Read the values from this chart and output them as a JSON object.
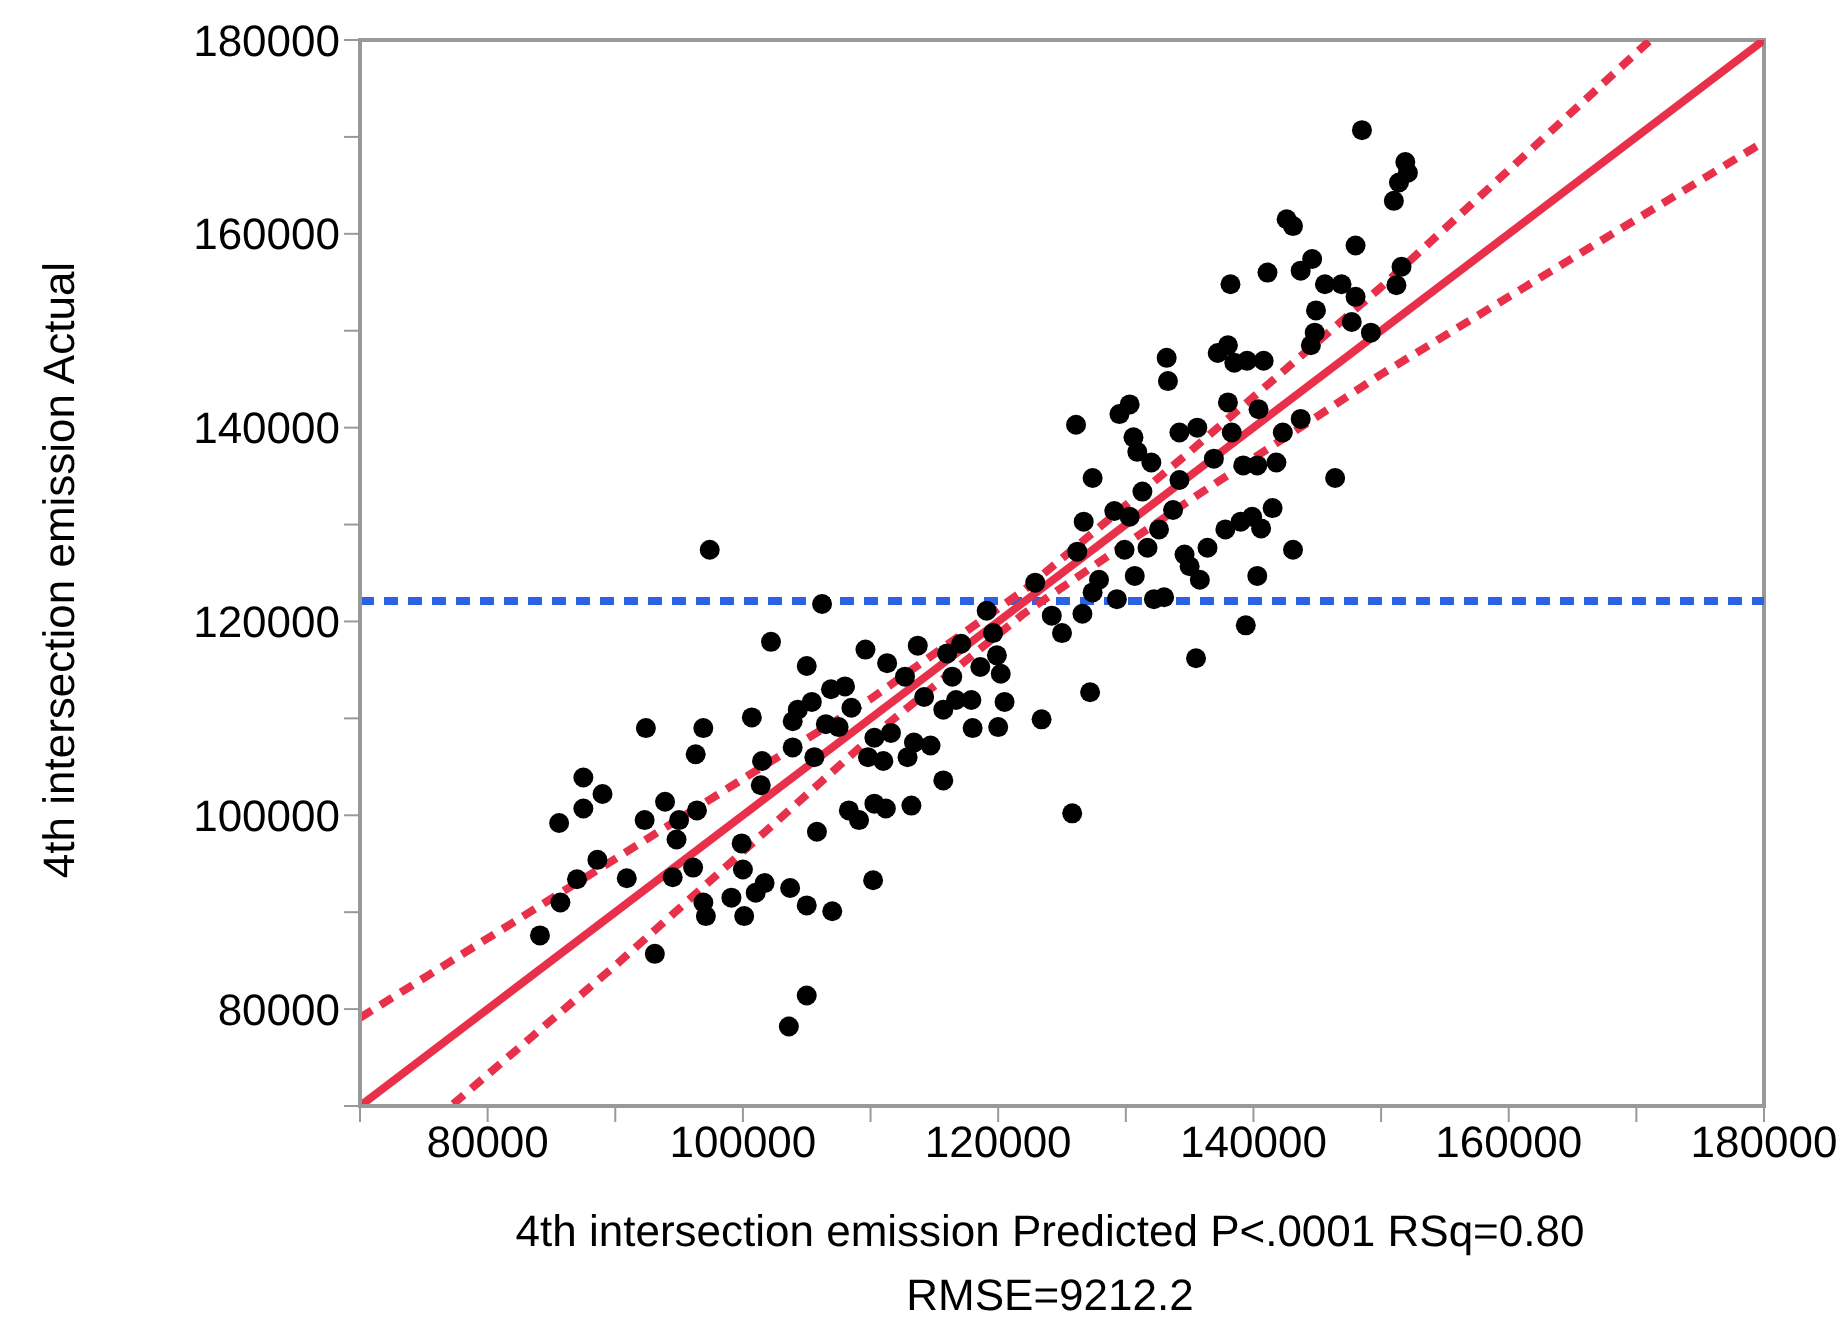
{
  "chart_data": {
    "type": "scatter",
    "xlabel": "4th intersection emission Predicted P<.0001 RSq=0.80",
    "ylabel": "4th intersection emission Actual",
    "annotations": [
      "RMSE=9212.2"
    ],
    "xlim": [
      70000,
      180000
    ],
    "ylim": [
      70000,
      180000
    ],
    "xticks": [
      {
        "value": 70000,
        "label": null
      },
      80000,
      {
        "value": 90000,
        "label": null
      },
      100000,
      {
        "value": 110000,
        "label": null
      },
      120000,
      {
        "value": 130000,
        "label": null
      },
      140000,
      {
        "value": 150000,
        "label": null
      },
      160000,
      {
        "value": 170000,
        "label": null
      },
      180000
    ],
    "yticks": [
      {
        "value": 70000,
        "label": null
      },
      80000,
      {
        "value": 90000,
        "label": null
      },
      100000,
      {
        "value": 110000,
        "label": null
      },
      120000,
      {
        "value": 130000,
        "label": null
      },
      140000,
      {
        "value": 150000,
        "label": null
      },
      160000,
      {
        "value": 170000,
        "label": null
      },
      180000
    ],
    "series": [
      {
        "color": "#000000",
        "marker": "circle",
        "x": [
          84100,
          85700,
          85600,
          87000,
          87500,
          87500,
          89000,
          88600,
          90900,
          92400,
          92300,
          93100,
          93900,
          94500,
          94800,
          95000,
          96100,
          96300,
          96400,
          96900,
          96900,
          97100,
          97400,
          99100,
          99900,
          100000,
          100100,
          100700,
          101000,
          101400,
          101500,
          101700,
          102200,
          103600,
          103700,
          103900,
          103900,
          104300,
          105000,
          105000,
          105000,
          105400,
          105600,
          105800,
          106200,
          106500,
          106900,
          107000,
          107500,
          108000,
          108500,
          108300,
          109100,
          109600,
          109800,
          110200,
          110300,
          110300,
          111000,
          111200,
          111300,
          111600,
          112700,
          112900,
          113200,
          113400,
          113700,
          114200,
          114700,
          115700,
          115700,
          116000,
          116400,
          116700,
          117100,
          117900,
          118000,
          118600,
          119100,
          119600,
          119900,
          120000,
          120200,
          120500,
          122900,
          123400,
          124200,
          125000,
          125800,
          126100,
          126200,
          126600,
          126700,
          127200,
          127400,
          127400,
          127900,
          129100,
          129300,
          129500,
          129900,
          130300,
          130300,
          130600,
          130700,
          130900,
          131300,
          131700,
          132000,
          132200,
          132600,
          133000,
          133200,
          133300,
          133700,
          134200,
          134200,
          134600,
          135000,
          135500,
          135600,
          135800,
          136400,
          136900,
          137200,
          137800,
          138000,
          138000,
          138200,
          138300,
          138500,
          139000,
          139200,
          139400,
          139500,
          139900,
          140400,
          140300,
          140300,
          140600,
          140800,
          141100,
          141500,
          141800,
          142300,
          142600,
          143100,
          143100,
          143700,
          143700,
          144600,
          144500,
          144800,
          144900,
          145600,
          146400,
          146900,
          147700,
          148000,
          148000,
          148500,
          149200,
          151000,
          151200,
          151400,
          151600,
          151900,
          152100
        ],
        "values": [
          87600,
          91000,
          99200,
          93400,
          100700,
          103900,
          102200,
          95400,
          93500,
          109000,
          99500,
          85700,
          101400,
          93600,
          97500,
          99500,
          94600,
          106300,
          100500,
          109000,
          91000,
          89600,
          127400,
          91500,
          97100,
          94400,
          89600,
          110100,
          92000,
          103100,
          105600,
          93000,
          117900,
          78200,
          92500,
          107000,
          109700,
          110900,
          115400,
          90700,
          81400,
          111700,
          106000,
          98300,
          121800,
          109400,
          113000,
          90100,
          109100,
          113300,
          111100,
          100500,
          99500,
          117100,
          106000,
          93300,
          108000,
          101200,
          105600,
          100700,
          115700,
          108500,
          114300,
          106000,
          101000,
          107500,
          117500,
          112200,
          107200,
          103600,
          110900,
          116700,
          114300,
          111900,
          117700,
          111900,
          109000,
          115300,
          121100,
          118800,
          116500,
          109100,
          114600,
          111700,
          124000,
          109900,
          120600,
          118800,
          100200,
          140300,
          127200,
          120800,
          130300,
          112700,
          134800,
          123000,
          124300,
          131400,
          122300,
          141400,
          127400,
          142400,
          130800,
          139000,
          124700,
          137500,
          133400,
          127600,
          136400,
          122300,
          129500,
          122500,
          147200,
          144800,
          131500,
          139500,
          134600,
          126900,
          125700,
          116200,
          140000,
          124300,
          127600,
          136800,
          147700,
          129500,
          148500,
          142600,
          154800,
          139500,
          146700,
          130300,
          136100,
          119600,
          146900,
          130800,
          141900,
          136100,
          124700,
          129600,
          146900,
          156000,
          131700,
          136400,
          139500,
          161500,
          160800,
          127400,
          140900,
          156200,
          157400,
          148500,
          149800,
          152100,
          154800,
          134800,
          154800,
          150900,
          153500,
          158800,
          170700,
          149800,
          163400,
          154700,
          165300,
          156600,
          167400,
          166300
        ]
      },
      {
        "type": "line",
        "color": "#e8304a",
        "line_style": "solid",
        "x": [
          70000,
          180000
        ],
        "values": [
          70000,
          180000
        ]
      },
      {
        "type": "line",
        "color": "#e8304a",
        "line_style": "dashed",
        "x": [
          70000,
          90000,
          110000,
          122000,
          135000,
          150000,
          171100
        ],
        "values": [
          79100,
          95500,
          112000,
          123200,
          137500,
          154500,
          180000
        ]
      },
      {
        "type": "line",
        "color": "#e8304a",
        "line_style": "dashed",
        "x": [
          77300,
          90000,
          110000,
          122000,
          135000,
          150000,
          180000
        ],
        "values": [
          70200,
          84500,
          108000,
          120800,
          132500,
          145500,
          169500
        ]
      }
    ],
    "ref_lines": [
      {
        "axis": "y",
        "value": 122100,
        "color": "#2b62e6",
        "line_style": "dashed"
      }
    ]
  }
}
